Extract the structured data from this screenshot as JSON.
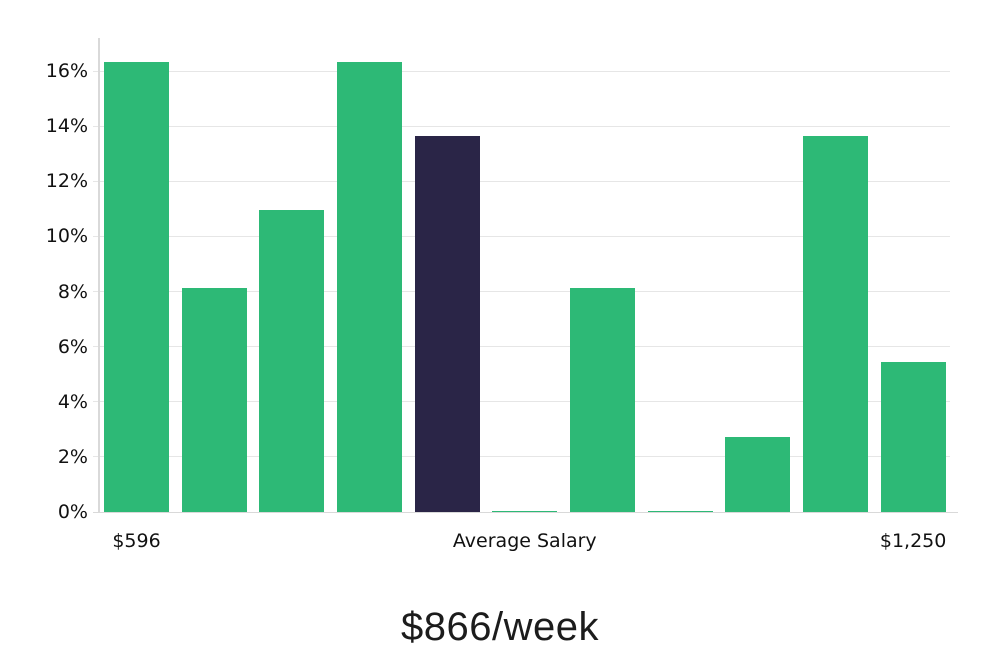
{
  "chart_data": {
    "type": "bar",
    "values": [
      16.33,
      8.13,
      10.95,
      16.33,
      13.64,
      0.05,
      8.13,
      0.05,
      2.72,
      13.64,
      5.44
    ],
    "highlight_index": 4,
    "bar_roles": [
      "normal",
      "normal",
      "normal",
      "normal",
      "highlight",
      "normal",
      "normal",
      "normal",
      "normal",
      "normal",
      "normal"
    ],
    "y_ticks": [
      {
        "value": 0,
        "label": "0%"
      },
      {
        "value": 2,
        "label": "2%"
      },
      {
        "value": 4,
        "label": "4%"
      },
      {
        "value": 6,
        "label": "6%"
      },
      {
        "value": 8,
        "label": "8%"
      },
      {
        "value": 10,
        "label": "10%"
      },
      {
        "value": 12,
        "label": "12%"
      },
      {
        "value": 14,
        "label": "14%"
      },
      {
        "value": 16,
        "label": "16%"
      }
    ],
    "x_ticks": [
      {
        "bar_index": 0,
        "label": "$596"
      },
      {
        "bar_index": 5,
        "label": "Average Salary"
      },
      {
        "bar_index": 10,
        "label": "$1,250"
      }
    ],
    "ylim": [
      0,
      17.2
    ],
    "grid": true,
    "legend": "none",
    "title": "$866/week",
    "colors": {
      "bar_normal": "#2db976",
      "bar_highlight": "#2a2547",
      "gridline": "#e6e6e6",
      "axis_line": "#d9d9d9",
      "tick_text": "#111111",
      "title_text": "#1c1c1c",
      "background": "#ffffff"
    }
  }
}
